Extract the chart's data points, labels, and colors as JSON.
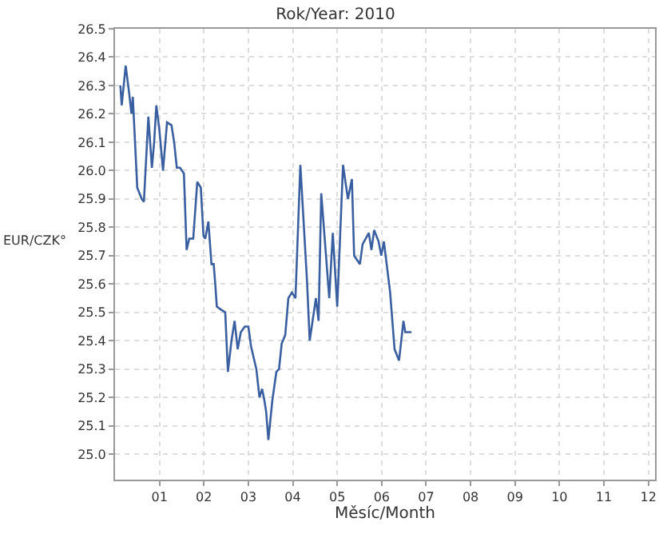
{
  "chart_data": {
    "type": "line",
    "title": "Rok/Year: 2010",
    "xlabel": "Měsíc/Month",
    "ylabel": "EUR/CZK°",
    "x": [
      0.12,
      0.15,
      0.24,
      0.32,
      0.37,
      0.4,
      0.5,
      0.6,
      0.65,
      0.75,
      0.83,
      0.88,
      0.93,
      1.0,
      1.08,
      1.17,
      1.27,
      1.33,
      1.39,
      1.46,
      1.55,
      1.61,
      1.67,
      1.76,
      1.85,
      1.93,
      1.99,
      2.03,
      2.1,
      2.17,
      2.22,
      2.26,
      2.29,
      2.38,
      2.48,
      2.54,
      2.62,
      2.69,
      2.76,
      2.83,
      2.92,
      3.0,
      3.06,
      3.18,
      3.25,
      3.31,
      3.36,
      3.4,
      3.45,
      3.54,
      3.63,
      3.69,
      3.75,
      3.83,
      3.9,
      3.98,
      4.06,
      4.17,
      4.32,
      4.38,
      4.52,
      4.58,
      4.64,
      4.82,
      4.9,
      5.0,
      5.07,
      5.13,
      5.24,
      5.33,
      5.38,
      5.51,
      5.57,
      5.71,
      5.77,
      5.83,
      5.93,
      5.99,
      6.05,
      6.19,
      6.29,
      6.39,
      6.49,
      6.53,
      6.67
    ],
    "series": [
      {
        "color": "#3a5fa0",
        "values": [
          26.3,
          26.23,
          26.37,
          26.27,
          26.2,
          26.26,
          25.94,
          25.9,
          25.89,
          26.19,
          26.01,
          26.1,
          26.23,
          26.14,
          26.0,
          26.17,
          26.16,
          26.1,
          26.01,
          26.01,
          25.99,
          25.72,
          25.76,
          25.76,
          25.96,
          25.94,
          25.77,
          25.76,
          25.82,
          25.67,
          25.67,
          25.59,
          25.52,
          25.51,
          25.5,
          25.29,
          25.4,
          25.47,
          25.37,
          25.43,
          25.45,
          25.45,
          25.38,
          25.3,
          25.2,
          25.23,
          25.19,
          25.15,
          25.05,
          25.19,
          25.29,
          25.3,
          25.39,
          25.42,
          25.55,
          25.57,
          25.55,
          26.02,
          25.61,
          25.4,
          25.55,
          25.47,
          25.92,
          25.55,
          25.78,
          25.52,
          25.79,
          26.02,
          25.9,
          25.97,
          25.7,
          25.67,
          25.74,
          25.78,
          25.72,
          25.79,
          25.75,
          25.7,
          25.75,
          25.57,
          25.37,
          25.33,
          25.47,
          25.43,
          25.43
        ]
      }
    ],
    "xlim": [
      0,
      12.15
    ],
    "xticks": [
      {
        "value": 1,
        "label": "01"
      },
      {
        "value": 2,
        "label": "02"
      },
      {
        "value": 3,
        "label": "03"
      },
      {
        "value": 4,
        "label": "04"
      },
      {
        "value": 5,
        "label": "05"
      },
      {
        "value": 6,
        "label": "06"
      },
      {
        "value": 7,
        "label": "07"
      },
      {
        "value": 8,
        "label": "08"
      },
      {
        "value": 9,
        "label": "09"
      },
      {
        "value": 10,
        "label": "10"
      },
      {
        "value": 11,
        "label": "11"
      },
      {
        "value": 12,
        "label": "12"
      }
    ],
    "ylim": [
      24.91,
      26.5
    ],
    "yticks": [
      {
        "value": 25,
        "label": "25.0"
      },
      25.1,
      25.2,
      25.3,
      25.4,
      25.5,
      25.6,
      25.7,
      25.8,
      25.9,
      {
        "value": 26,
        "label": "26.0"
      },
      26.1,
      26.2,
      26.3,
      26.4,
      26.5
    ],
    "grid": true,
    "marker": "none",
    "line_style": "solid"
  }
}
